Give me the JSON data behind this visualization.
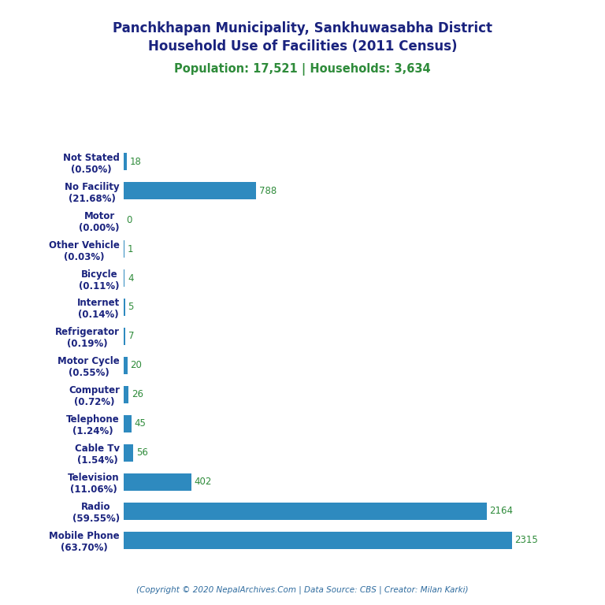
{
  "title_line1": "Panchkhapan Municipality, Sankhuwasabha District",
  "title_line2": "Household Use of Facilities (2011 Census)",
  "subtitle": "Population: 17,521 | Households: 3,634",
  "subtitle_color": "#2e8b3a",
  "title_color": "#1a237e",
  "categories": [
    "Not Stated\n(0.50%)",
    "No Facility\n(21.68%)",
    "Motor\n(0.00%)",
    "Other Vehicle\n(0.03%)",
    "Bicycle\n(0.11%)",
    "Internet\n(0.14%)",
    "Refrigerator\n(0.19%)",
    "Motor Cycle\n(0.55%)",
    "Computer\n(0.72%)",
    "Telephone\n(1.24%)",
    "Cable Tv\n(1.54%)",
    "Television\n(11.06%)",
    "Radio\n(59.55%)",
    "Mobile Phone\n(63.70%)"
  ],
  "values": [
    18,
    788,
    0,
    1,
    4,
    5,
    7,
    20,
    26,
    45,
    56,
    402,
    2164,
    2315
  ],
  "bar_color": "#2e8abf",
  "value_color": "#2e8b3a",
  "background_color": "#ffffff",
  "footer": "(Copyright © 2020 NepalArchives.Com | Data Source: CBS | Creator: Milan Karki)",
  "footer_color": "#2e6b9e",
  "xlim": [
    0,
    2600
  ],
  "figsize": [
    7.68,
    7.68
  ],
  "dpi": 100
}
